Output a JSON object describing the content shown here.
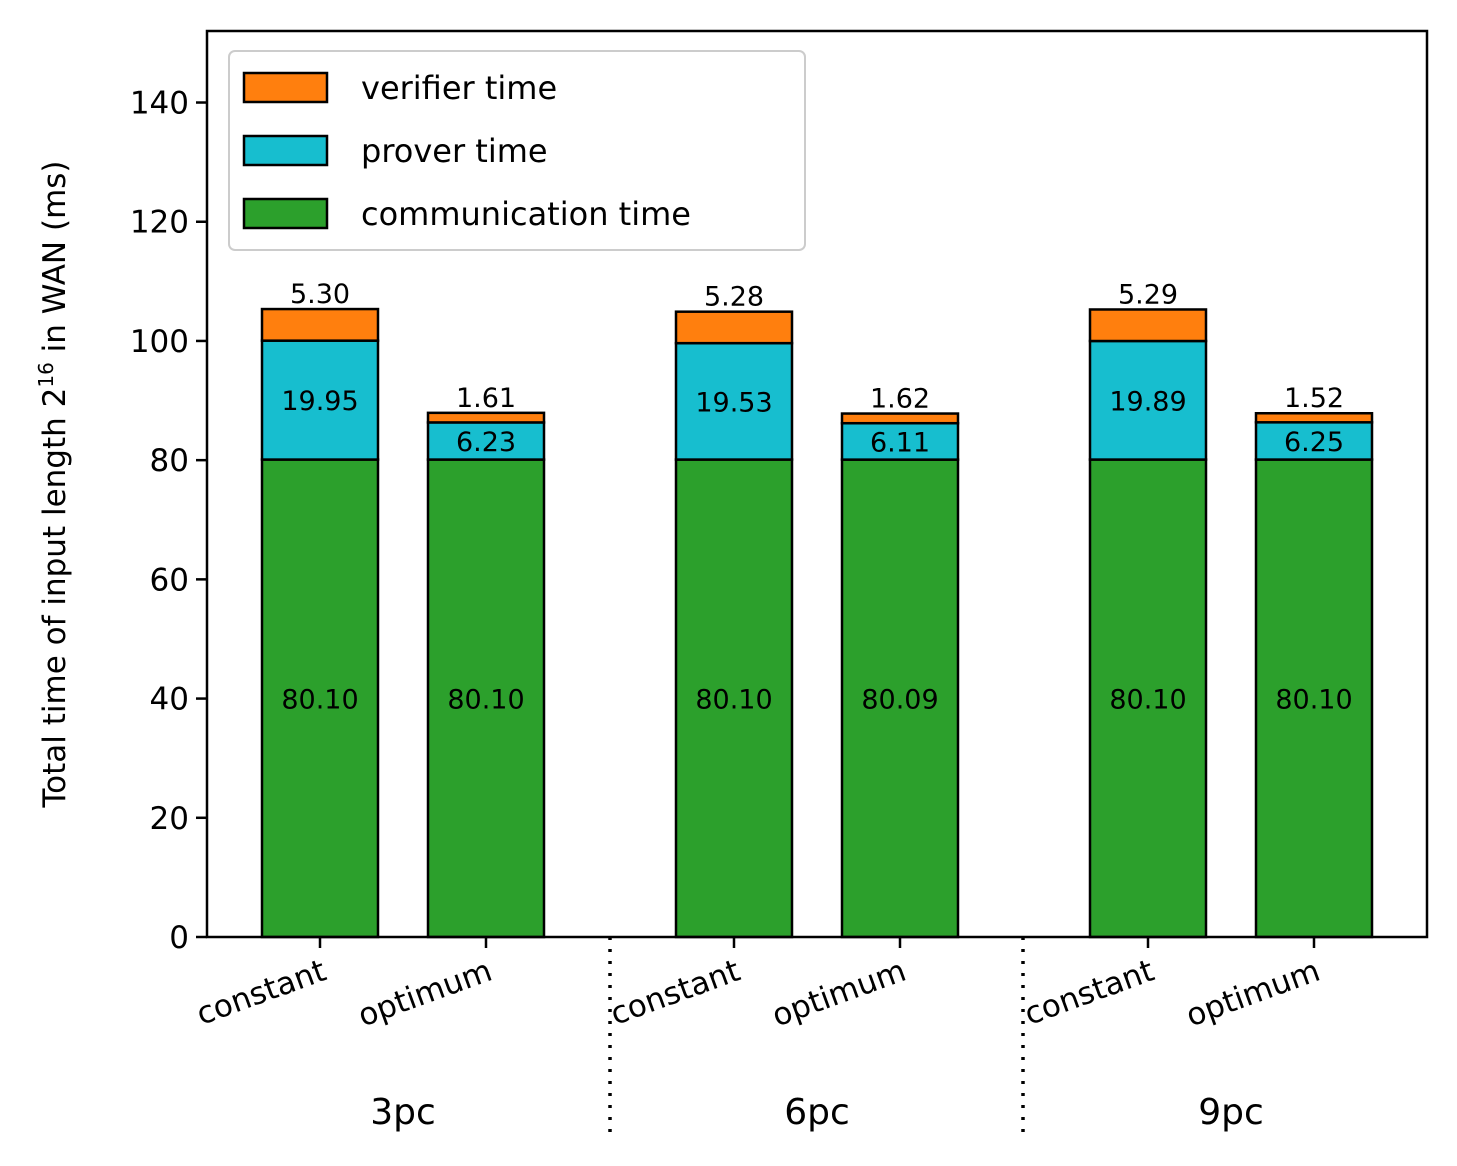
{
  "chart_data": {
    "type": "bar",
    "stacked": true,
    "ylabel": {
      "prefix": "Total time of input length 2",
      "superscript": "16",
      "suffix": " in WAN (ms)"
    },
    "ylim": [
      0,
      152
    ],
    "yticks": [
      "0",
      "20",
      "40",
      "60",
      "80",
      "100",
      "120",
      "140"
    ],
    "grid": false,
    "legend_position": "top-left",
    "groups": [
      "3pc",
      "6pc",
      "9pc"
    ],
    "categories": [
      "constant",
      "optimum",
      "constant",
      "optimum",
      "constant",
      "optimum"
    ],
    "series": [
      {
        "name": "communication time",
        "color": "#2ca02c",
        "values": [
          80.1,
          80.1,
          80.1,
          80.09,
          80.1,
          80.1
        ],
        "labels": [
          "80.10",
          "80.10",
          "80.10",
          "80.09",
          "80.10",
          "80.10"
        ]
      },
      {
        "name": "prover time",
        "color": "#17becf",
        "values": [
          19.95,
          6.23,
          19.53,
          6.11,
          19.89,
          6.25
        ],
        "labels": [
          "19.95",
          "6.23",
          "19.53",
          "6.11",
          "19.89",
          "6.25"
        ]
      },
      {
        "name": "verifier time",
        "color": "#ff7f0e",
        "values": [
          5.3,
          1.61,
          5.28,
          1.62,
          5.29,
          1.52
        ],
        "labels": [
          "5.30",
          "1.61",
          "5.28",
          "1.62",
          "5.29",
          "1.52"
        ]
      }
    ],
    "legend_order": [
      "verifier time",
      "prover time",
      "communication time"
    ]
  }
}
